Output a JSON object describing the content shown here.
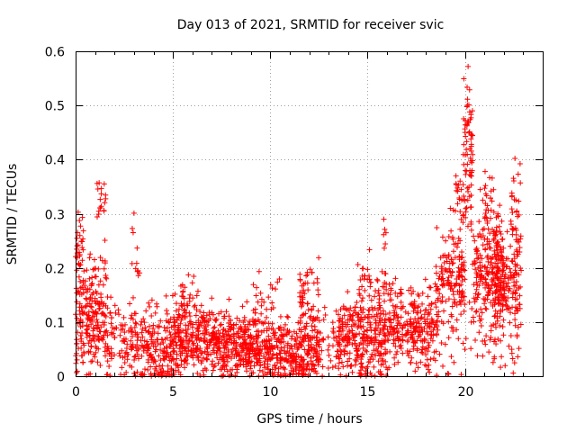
{
  "chart_data": {
    "type": "scatter",
    "title": "Day 013 of 2021, SRMTID for receiver svic",
    "xlabel": "GPS time / hours",
    "ylabel": "SRMTID / TECUs",
    "xlim": [
      0,
      24
    ],
    "ylim": [
      0,
      0.6
    ],
    "x_ticks": [
      0,
      5,
      10,
      15,
      20
    ],
    "y_ticks": [
      0,
      0.1,
      0.2,
      0.3,
      0.4,
      0.5,
      0.6
    ],
    "x_tick_labels": [
      "0",
      "5",
      "10",
      "15",
      "20"
    ],
    "y_tick_labels": [
      "0",
      "0.1",
      "0.2",
      "0.3",
      "0.4",
      "0.5",
      "0.6"
    ],
    "grid": true,
    "marker": "+",
    "series": [
      {
        "name": "SRMTID",
        "color": "#ff0000",
        "density_profile": [
          {
            "x": [
              0.0,
              1.6
            ],
            "center": 0.12,
            "spread": 0.08,
            "count": 220
          },
          {
            "x": [
              0.0,
              0.4
            ],
            "center": 0.25,
            "spread": 0.05,
            "count": 25
          },
          {
            "x": [
              1.1,
              1.6
            ],
            "center": 0.32,
            "spread": 0.05,
            "count": 20
          },
          {
            "x": [
              1.6,
              3.0
            ],
            "center": 0.07,
            "spread": 0.06,
            "count": 90
          },
          {
            "x": [
              2.9,
              3.3
            ],
            "center": 0.23,
            "spread": 0.06,
            "count": 12
          },
          {
            "x": [
              3.0,
              5.0
            ],
            "center": 0.06,
            "spread": 0.06,
            "count": 190
          },
          {
            "x": [
              5.0,
              7.5
            ],
            "center": 0.07,
            "spread": 0.05,
            "count": 300
          },
          {
            "x": [
              5.0,
              6.5
            ],
            "center": 0.15,
            "spread": 0.04,
            "count": 30
          },
          {
            "x": [
              7.5,
              10.0
            ],
            "center": 0.06,
            "spread": 0.05,
            "count": 320
          },
          {
            "x": [
              9.0,
              10.5
            ],
            "center": 0.14,
            "spread": 0.04,
            "count": 30
          },
          {
            "x": [
              10.0,
              12.5
            ],
            "center": 0.05,
            "spread": 0.05,
            "count": 280
          },
          {
            "x": [
              11.5,
              12.5
            ],
            "center": 0.15,
            "spread": 0.05,
            "count": 55
          },
          {
            "x": [
              12.5,
              13.5
            ],
            "center": 0.07,
            "spread": 0.05,
            "count": 40
          },
          {
            "x": [
              13.5,
              16.0
            ],
            "center": 0.08,
            "spread": 0.06,
            "count": 300
          },
          {
            "x": [
              14.5,
              16.0
            ],
            "center": 0.17,
            "spread": 0.04,
            "count": 40
          },
          {
            "x": [
              16.0,
              18.5
            ],
            "center": 0.1,
            "spread": 0.06,
            "count": 260
          },
          {
            "x": [
              15.8,
              16.0
            ],
            "center": 0.26,
            "spread": 0.02,
            "count": 6
          },
          {
            "x": [
              18.5,
              20.0
            ],
            "center": 0.18,
            "spread": 0.08,
            "count": 170
          },
          {
            "x": [
              19.4,
              19.9
            ],
            "center": 0.34,
            "spread": 0.05,
            "count": 25
          },
          {
            "x": [
              19.9,
              20.4
            ],
            "center": 0.4,
            "spread": 0.09,
            "count": 70
          },
          {
            "x": [
              20.0,
              20.3
            ],
            "center": 0.52,
            "spread": 0.04,
            "count": 15
          },
          {
            "x": [
              20.4,
              22.0
            ],
            "center": 0.2,
            "spread": 0.09,
            "count": 220
          },
          {
            "x": [
              21.0,
              21.5
            ],
            "center": 0.33,
            "spread": 0.06,
            "count": 25
          },
          {
            "x": [
              21.5,
              22.9
            ],
            "center": 0.18,
            "spread": 0.08,
            "count": 180
          },
          {
            "x": [
              22.4,
              22.9
            ],
            "center": 0.33,
            "spread": 0.06,
            "count": 30
          }
        ]
      }
    ]
  }
}
